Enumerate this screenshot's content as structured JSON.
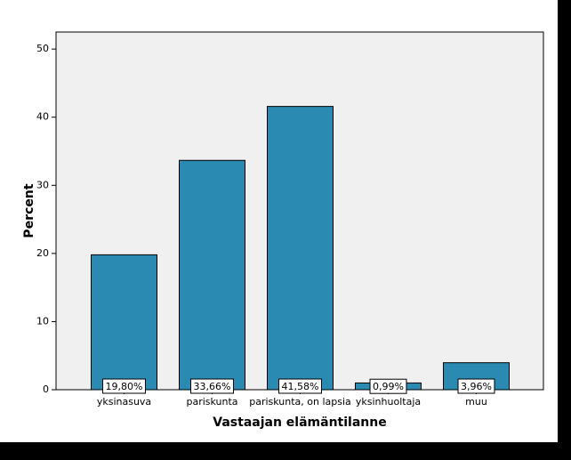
{
  "chart_data": {
    "type": "bar",
    "categories": [
      "yksinasuva",
      "pariskunta",
      "pariskunta, on lapsia",
      "yksinhuoltaja",
      "muu"
    ],
    "values": [
      19.8,
      33.66,
      41.58,
      0.99,
      3.96
    ],
    "value_labels": [
      "19,80%",
      "33,66%",
      "41,58%",
      "0,99%",
      "3,96%"
    ],
    "color": "#2a8ab1",
    "x_label": "Vastaajan elämäntilanne",
    "y_label": "Percent",
    "ylim": [
      0,
      52.5
    ],
    "yticks": [
      0,
      10,
      20,
      30,
      40,
      50
    ],
    "grid": false
  }
}
